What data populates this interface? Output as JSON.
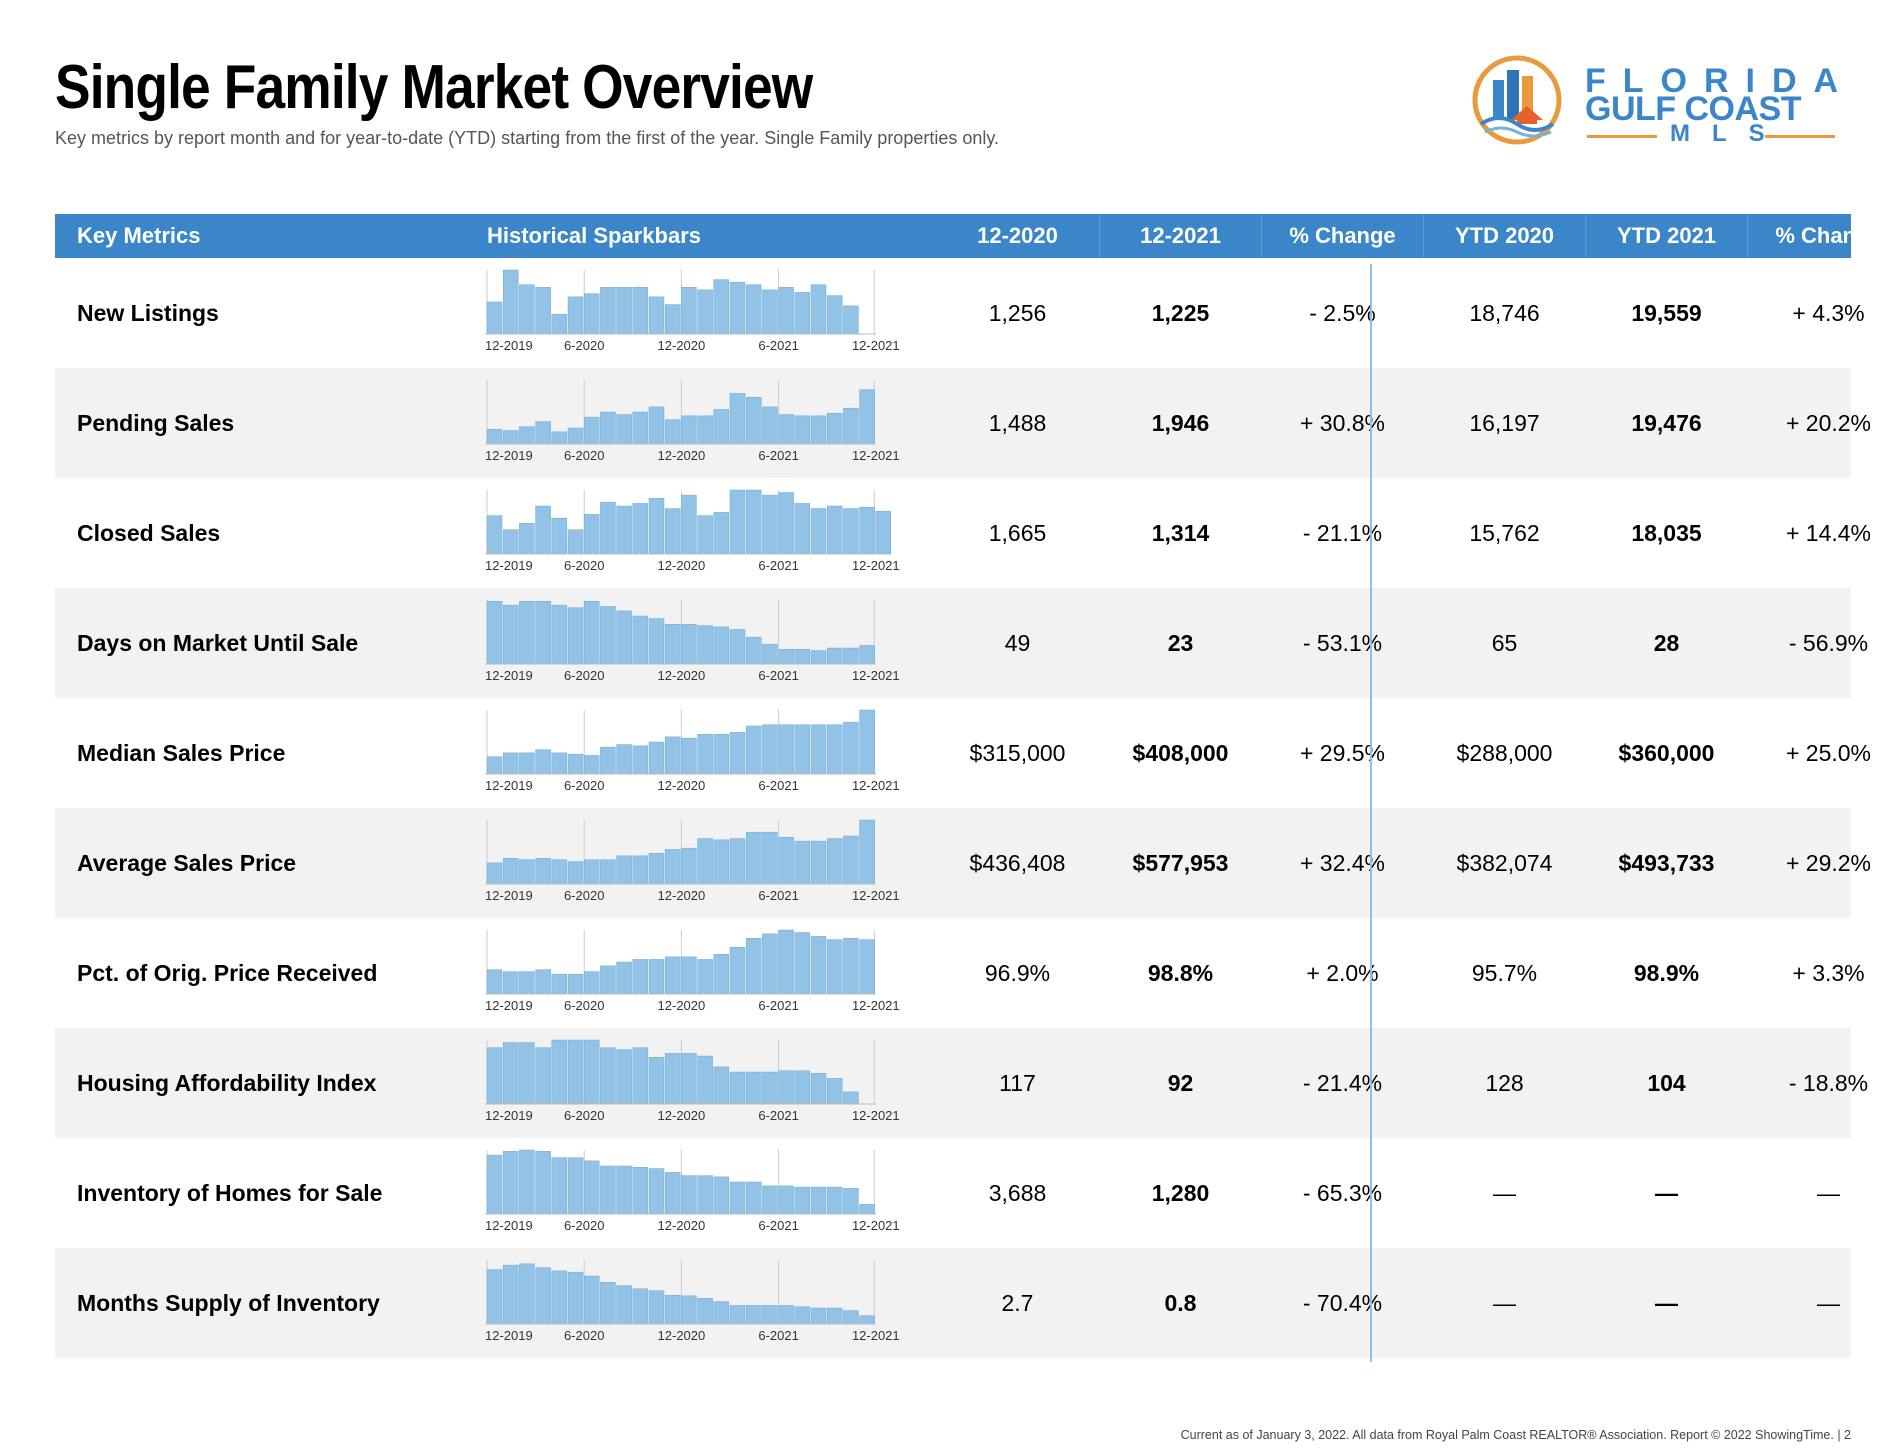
{
  "header": {
    "title": "Single Family Market Overview",
    "subtitle": "Key metrics by report month and for year-to-date (YTD) starting from the first of the year. Single Family properties only."
  },
  "logo": {
    "line1": "FLORIDA",
    "line2": "GULF COAST",
    "line3": "MLS",
    "colors": {
      "blue": "#3a86c8",
      "orange": "#e89a3c"
    }
  },
  "table": {
    "columns": [
      "Key Metrics",
      "Historical Sparkbars",
      "12-2020",
      "12-2021",
      "% Change",
      "YTD 2020",
      "YTD 2021",
      "% Change"
    ],
    "spark_axis_labels": [
      "12-2019",
      "6-2020",
      "12-2020",
      "6-2021",
      "12-2021"
    ],
    "rows": [
      {
        "metric": "New Listings",
        "m2020": "1,256",
        "m2021": "1,225",
        "pct": "- 2.5%",
        "ytd2020": "18,746",
        "ytd2021": "19,559",
        "ytdpct": "+ 4.3%",
        "spark": [
          0.5,
          1.0,
          0.77,
          0.73,
          0.31,
          0.58,
          0.63,
          0.73,
          0.73,
          0.73,
          0.58,
          0.46,
          0.73,
          0.69,
          0.85,
          0.81,
          0.77,
          0.69,
          0.73,
          0.65,
          0.77,
          0.6,
          0.44
        ]
      },
      {
        "metric": "Pending Sales",
        "m2020": "1,488",
        "m2021": "1,946",
        "pct": "+ 30.8%",
        "ytd2020": "16,197",
        "ytd2021": "19,476",
        "ytdpct": "+ 20.2%",
        "spark": [
          0.23,
          0.21,
          0.27,
          0.35,
          0.19,
          0.25,
          0.42,
          0.5,
          0.46,
          0.5,
          0.58,
          0.38,
          0.44,
          0.44,
          0.54,
          0.79,
          0.73,
          0.58,
          0.46,
          0.44,
          0.44,
          0.48,
          0.56,
          0.85
        ]
      },
      {
        "metric": "Closed Sales",
        "m2020": "1,665",
        "m2021": "1,314",
        "pct": "- 21.1%",
        "ytd2020": "15,762",
        "ytd2021": "18,035",
        "ytdpct": "+ 14.4%",
        "spark": [
          0.6,
          0.38,
          0.48,
          0.75,
          0.56,
          0.38,
          0.62,
          0.81,
          0.75,
          0.79,
          0.87,
          0.71,
          0.92,
          0.6,
          0.65,
          1.0,
          1.0,
          0.92,
          0.96,
          0.79,
          0.71,
          0.75,
          0.71,
          0.73,
          0.67
        ]
      },
      {
        "metric": "Days on Market Until Sale",
        "m2020": "49",
        "m2021": "23",
        "pct": "- 53.1%",
        "ytd2020": "65",
        "ytd2021": "28",
        "ytdpct": "- 56.9%",
        "spark": [
          0.98,
          0.92,
          0.98,
          0.98,
          0.92,
          0.88,
          0.98,
          0.9,
          0.83,
          0.75,
          0.71,
          0.62,
          0.62,
          0.6,
          0.58,
          0.54,
          0.42,
          0.31,
          0.23,
          0.23,
          0.21,
          0.25,
          0.25,
          0.29
        ]
      },
      {
        "metric": "Median Sales Price",
        "m2020": "$315,000",
        "m2021": "$408,000",
        "pct": "+ 29.5%",
        "ytd2020": "$288,000",
        "ytd2021": "$360,000",
        "ytdpct": "+ 25.0%",
        "spark": [
          0.27,
          0.33,
          0.33,
          0.38,
          0.33,
          0.31,
          0.29,
          0.42,
          0.46,
          0.44,
          0.5,
          0.58,
          0.56,
          0.62,
          0.62,
          0.65,
          0.75,
          0.77,
          0.77,
          0.77,
          0.77,
          0.77,
          0.81,
          1.0
        ]
      },
      {
        "metric": "Average Sales Price",
        "m2020": "$436,408",
        "m2021": "$577,953",
        "pct": "+ 32.4%",
        "ytd2020": "$382,074",
        "ytd2021": "$493,733",
        "ytdpct": "+ 29.2%",
        "spark": [
          0.33,
          0.4,
          0.38,
          0.4,
          0.38,
          0.35,
          0.38,
          0.38,
          0.44,
          0.44,
          0.48,
          0.54,
          0.56,
          0.71,
          0.69,
          0.71,
          0.81,
          0.81,
          0.73,
          0.67,
          0.67,
          0.71,
          0.75,
          1.0
        ]
      },
      {
        "metric": "Pct. of Orig. Price Received",
        "m2020": "96.9%",
        "m2021": "98.8%",
        "pct": "+ 2.0%",
        "ytd2020": "95.7%",
        "ytd2021": "98.9%",
        "ytdpct": "+ 3.3%",
        "spark": [
          0.38,
          0.35,
          0.35,
          0.38,
          0.31,
          0.31,
          0.35,
          0.44,
          0.5,
          0.54,
          0.54,
          0.58,
          0.58,
          0.54,
          0.62,
          0.73,
          0.87,
          0.94,
          1.0,
          0.96,
          0.9,
          0.85,
          0.87,
          0.85
        ]
      },
      {
        "metric": "Housing Affordability Index",
        "m2020": "117",
        "m2021": "92",
        "pct": "- 21.4%",
        "ytd2020": "128",
        "ytd2021": "104",
        "ytdpct": "- 18.8%",
        "spark": [
          0.88,
          0.96,
          0.96,
          0.88,
          1.0,
          1.0,
          1.0,
          0.88,
          0.85,
          0.88,
          0.73,
          0.79,
          0.79,
          0.75,
          0.58,
          0.5,
          0.5,
          0.5,
          0.52,
          0.52,
          0.48,
          0.4,
          0.19
        ]
      },
      {
        "metric": "Inventory of Homes for Sale",
        "m2020": "3,688",
        "m2021": "1,280",
        "pct": "- 65.3%",
        "ytd2020": "—",
        "ytd2021": "—",
        "ytdpct": "—",
        "spark": [
          0.92,
          0.98,
          1.0,
          0.98,
          0.88,
          0.88,
          0.83,
          0.75,
          0.75,
          0.73,
          0.71,
          0.65,
          0.6,
          0.6,
          0.58,
          0.5,
          0.5,
          0.44,
          0.44,
          0.42,
          0.42,
          0.42,
          0.4,
          0.15
        ]
      },
      {
        "metric": "Months Supply of Inventory",
        "m2020": "2.7",
        "m2021": "0.8",
        "pct": "- 70.4%",
        "ytd2020": "—",
        "ytd2021": "—",
        "ytdpct": "—",
        "spark": [
          0.85,
          0.92,
          0.94,
          0.88,
          0.83,
          0.81,
          0.75,
          0.65,
          0.6,
          0.55,
          0.52,
          0.45,
          0.44,
          0.4,
          0.35,
          0.29,
          0.29,
          0.29,
          0.29,
          0.27,
          0.25,
          0.25,
          0.21,
          0.13
        ]
      }
    ]
  },
  "footer": "Current as of January 3, 2022. All data from Royal Palm Coast REALTOR® Association. Report © 2022 ShowingTime.  |  2",
  "colors": {
    "header_bg": "#3a86c8",
    "bar": "#92c2e6",
    "bar_edge": "#6fa9d6",
    "row_alt": "#f2f2f2",
    "gridline": "#cccccc",
    "divider": "#8cc0e4"
  }
}
